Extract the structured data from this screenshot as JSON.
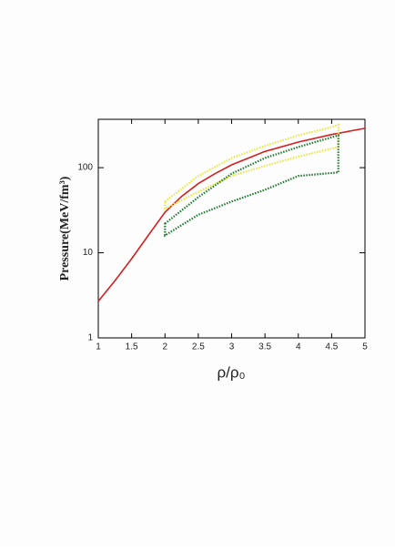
{
  "chart_data": {
    "type": "line",
    "xlabel": "ρ/ρ₀",
    "ylabel": "Pressure(MeV/fm³)",
    "xlim": [
      1,
      5
    ],
    "ylim": [
      1,
      370
    ],
    "log_y": true,
    "xticks": [
      1,
      1.5,
      2,
      2.5,
      3,
      3.5,
      4,
      4.5,
      5
    ],
    "yticks": [
      1,
      10,
      100
    ],
    "series": [
      {
        "color": "#d42020",
        "style": "solid",
        "closed": false,
        "x": [
          1,
          1.25,
          1.5,
          1.75,
          2,
          2.25,
          2.5,
          2.75,
          3,
          3.5,
          4,
          4.5,
          5
        ],
        "values": [
          2.7,
          4.7,
          8.5,
          16,
          30,
          46,
          65,
          85,
          108,
          155,
          200,
          245,
          290
        ]
      },
      {
        "color": "#e8e840",
        "style": "dotted",
        "closed": true,
        "x": [
          2,
          2.5,
          3,
          3.5,
          4,
          4.5,
          4.6,
          4.6,
          4,
          3.5,
          3,
          2.5,
          2
        ],
        "values": [
          40,
          80,
          130,
          180,
          240,
          300,
          320,
          175,
          135,
          105,
          80,
          52,
          33
        ]
      },
      {
        "color": "#1e7a2e",
        "style": "dotted",
        "closed": true,
        "x": [
          2,
          2.5,
          3,
          3.5,
          4,
          4.6,
          4.6,
          4,
          3.5,
          3,
          2.5,
          2
        ],
        "values": [
          22,
          45,
          85,
          130,
          175,
          240,
          88,
          80,
          55,
          40,
          28,
          16
        ]
      }
    ]
  }
}
